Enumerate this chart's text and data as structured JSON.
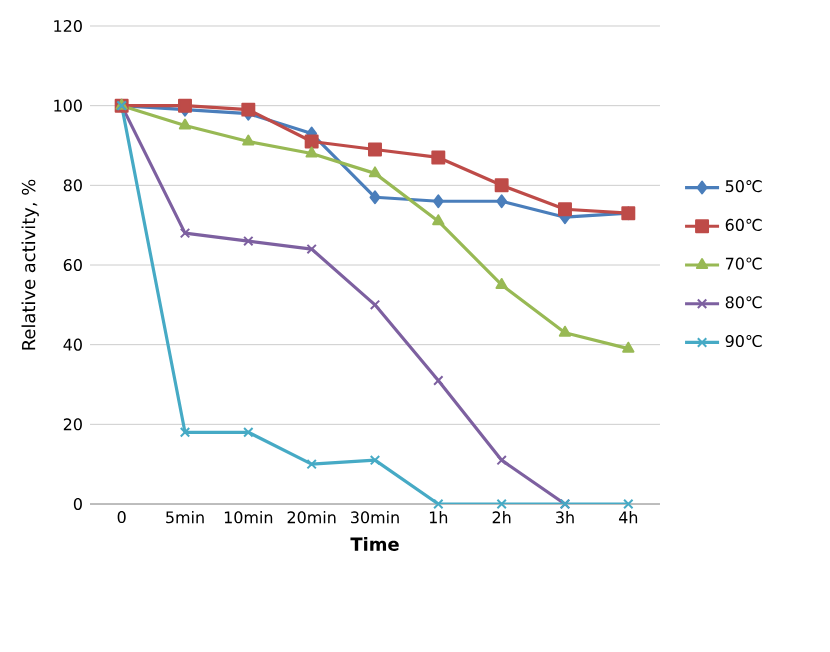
{
  "chart_data": {
    "type": "line",
    "xlabel": "Time",
    "ylabel": "Relative activity, %",
    "categories": [
      "0",
      "5min",
      "10min",
      "20min",
      "30min",
      "1h",
      "2h",
      "3h",
      "4h"
    ],
    "ylim": [
      0,
      120
    ],
    "yticks": [
      0,
      20,
      40,
      60,
      80,
      100,
      120
    ],
    "grid": "y",
    "legend": "right",
    "series": [
      {
        "name": "50℃",
        "color": "#4a7ebb",
        "marker": "diamond",
        "values": [
          100,
          99,
          98,
          93,
          77,
          76,
          76,
          72,
          73
        ]
      },
      {
        "name": "60℃",
        "color": "#be4b48",
        "marker": "square",
        "values": [
          100,
          100,
          99,
          91,
          89,
          87,
          80,
          74,
          73
        ]
      },
      {
        "name": "70℃",
        "color": "#98b954",
        "marker": "triangle",
        "values": [
          100,
          95,
          91,
          88,
          83,
          71,
          55,
          43,
          39
        ]
      },
      {
        "name": "80℃",
        "color": "#7d60a0",
        "marker": "cross",
        "values": [
          100,
          68,
          66,
          64,
          50,
          31,
          11,
          0,
          null
        ]
      },
      {
        "name": "90℃",
        "color": "#46aac5",
        "marker": "cross",
        "values": [
          100,
          18,
          18,
          10,
          11,
          0,
          0,
          0,
          0
        ]
      }
    ]
  }
}
